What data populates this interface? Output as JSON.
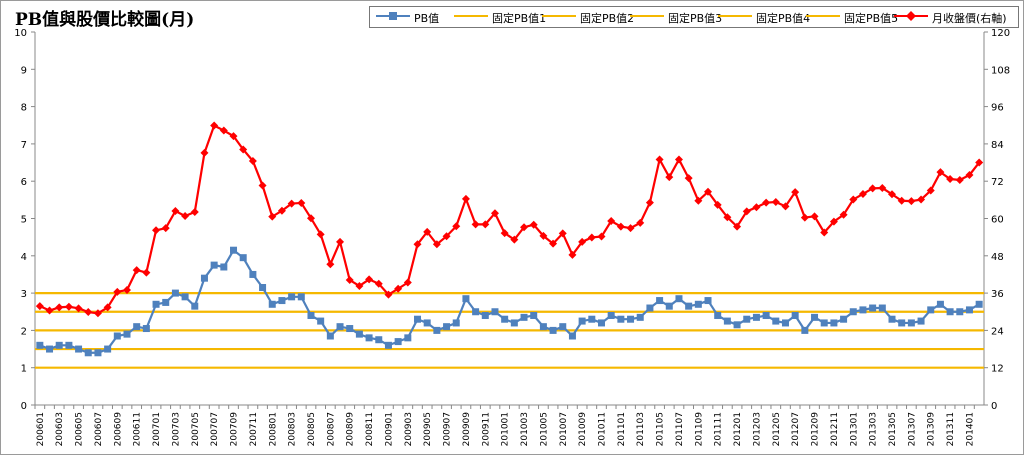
{
  "chart_data": {
    "type": "line",
    "title": "PB值與股價比較圖(月)",
    "xlabel": "",
    "ylabel": "",
    "y2label": "",
    "ylim": [
      0,
      10
    ],
    "y2lim": [
      0,
      120
    ],
    "yticks": [
      "0",
      "1",
      "2",
      "3",
      "4",
      "5",
      "6",
      "7",
      "8",
      "9",
      "10"
    ],
    "y2ticks": [
      "0",
      "12",
      "24",
      "36",
      "48",
      "60",
      "72",
      "84",
      "96",
      "108",
      "120"
    ],
    "grid": false,
    "legend_position": "top-right",
    "x": [
      "200601",
      "200602",
      "200603",
      "200604",
      "200605",
      "200606",
      "200607",
      "200608",
      "200609",
      "200610",
      "200611",
      "200612",
      "200701",
      "200702",
      "200703",
      "200704",
      "200705",
      "200706",
      "200707",
      "200708",
      "200709",
      "200710",
      "200711",
      "200712",
      "200801",
      "200802",
      "200803",
      "200804",
      "200805",
      "200806",
      "200807",
      "200808",
      "200809",
      "200810",
      "200811",
      "200812",
      "200901",
      "200902",
      "200903",
      "200904",
      "200905",
      "200906",
      "200907",
      "200908",
      "200909",
      "200910",
      "200911",
      "200912",
      "201001",
      "201002",
      "201003",
      "201004",
      "201005",
      "201006",
      "201007",
      "201008",
      "201009",
      "201010",
      "201011",
      "201012",
      "201101",
      "201102",
      "201103",
      "201104",
      "201105",
      "201106",
      "201107",
      "201108",
      "201109",
      "201110",
      "201111",
      "201112",
      "201201",
      "201202",
      "201203",
      "201204",
      "201205",
      "201206",
      "201207",
      "201208",
      "201209",
      "201210",
      "201211",
      "201212",
      "201301",
      "201302",
      "201303",
      "201304",
      "201305",
      "201306",
      "201307",
      "201308",
      "201309",
      "201310",
      "201311",
      "201312",
      "201401",
      "201402"
    ],
    "x_tick_labels": [
      "200601",
      "200603",
      "200605",
      "200607",
      "200609",
      "200611",
      "200701",
      "200703",
      "200705",
      "200707",
      "200709",
      "200711",
      "200801",
      "200803",
      "200805",
      "200807",
      "200809",
      "200811",
      "200901",
      "200903",
      "200905",
      "200907",
      "200909",
      "200911",
      "201001",
      "201003",
      "201005",
      "201007",
      "201009",
      "201011",
      "201101",
      "201103",
      "201105",
      "201107",
      "201109",
      "201111",
      "201201",
      "201203",
      "201205",
      "201207",
      "201209",
      "201211",
      "201301",
      "201303",
      "201305",
      "201307",
      "201309",
      "201311",
      "201401"
    ],
    "series": [
      {
        "name": "PB值",
        "axis": "left",
        "color": "#4f81bd",
        "marker": "square",
        "values": [
          1.6,
          1.5,
          1.6,
          1.6,
          1.5,
          1.4,
          1.4,
          1.5,
          1.85,
          1.9,
          2.1,
          2.05,
          2.7,
          2.75,
          3.0,
          2.9,
          2.65,
          3.4,
          3.75,
          3.7,
          4.15,
          3.95,
          3.5,
          3.15,
          2.7,
          2.8,
          2.9,
          2.9,
          2.4,
          2.25,
          1.85,
          2.1,
          2.05,
          1.9,
          1.8,
          1.75,
          1.6,
          1.7,
          1.8,
          2.3,
          2.2,
          2.0,
          2.1,
          2.2,
          2.85,
          2.5,
          2.4,
          2.5,
          2.3,
          2.2,
          2.35,
          2.4,
          2.1,
          2.0,
          2.1,
          1.85,
          2.25,
          2.3,
          2.2,
          2.4,
          2.3,
          2.3,
          2.35,
          2.6,
          2.8,
          2.65,
          2.85,
          2.65,
          2.7,
          2.8,
          2.4,
          2.25,
          2.15,
          2.3,
          2.35,
          2.4,
          2.25,
          2.2,
          2.4,
          2.0,
          2.35,
          2.2,
          2.2,
          2.3,
          2.5,
          2.55,
          2.6,
          2.6,
          2.3,
          2.2,
          2.2,
          2.25,
          2.55,
          2.7,
          2.5,
          2.5,
          2.55,
          2.7
        ]
      },
      {
        "name": "固定PB值1",
        "axis": "left",
        "color": "#f5b800",
        "constant": 1.0
      },
      {
        "name": "固定PB值2",
        "axis": "left",
        "color": "#f5b800",
        "constant": 1.5
      },
      {
        "name": "固定PB值3",
        "axis": "left",
        "color": "#f5b800",
        "constant": 2.0
      },
      {
        "name": "固定PB值4",
        "axis": "left",
        "color": "#f5b800",
        "constant": 2.5
      },
      {
        "name": "固定PB值5",
        "axis": "left",
        "color": "#f5b800",
        "constant": 3.0
      },
      {
        "name": "月收盤價(右軸)",
        "axis": "right",
        "color": "#ff0000",
        "marker": "diamond",
        "values": [
          31.8,
          30.4,
          31.4,
          31.6,
          31.1,
          29.9,
          29.5,
          31.4,
          36.4,
          37,
          43.4,
          42.6,
          56.2,
          56.9,
          62.4,
          60.8,
          62.1,
          81.1,
          89.9,
          88.3,
          86.5,
          82.2,
          78.5,
          70.6,
          60.6,
          62.5,
          64.8,
          65,
          60.1,
          54.9,
          45.3,
          52.5,
          40.2,
          38.3,
          40.4,
          39,
          35.5,
          37.4,
          39.4,
          51.7,
          55.7,
          51.7,
          54.3,
          57.5,
          66.3,
          58.1,
          58.1,
          61.7,
          55.3,
          53.2,
          57.2,
          58,
          54.4,
          51.9,
          55.2,
          48.3,
          52.5,
          53.9,
          54.2,
          59.2,
          57.4,
          56.9,
          58.6,
          65.1,
          79,
          73.3,
          79,
          73,
          65.7,
          68.6,
          64.4,
          60.4,
          57.4,
          62.3,
          63.6,
          65.1,
          65.3,
          63.9,
          68.5,
          60.3,
          60.7,
          55.5,
          59,
          61.2,
          66.1,
          67.9,
          69.7,
          69.8,
          67.8,
          65.7,
          65.6,
          66.1,
          69,
          74.9,
          72.7,
          72.4,
          74,
          78
        ]
      }
    ]
  }
}
